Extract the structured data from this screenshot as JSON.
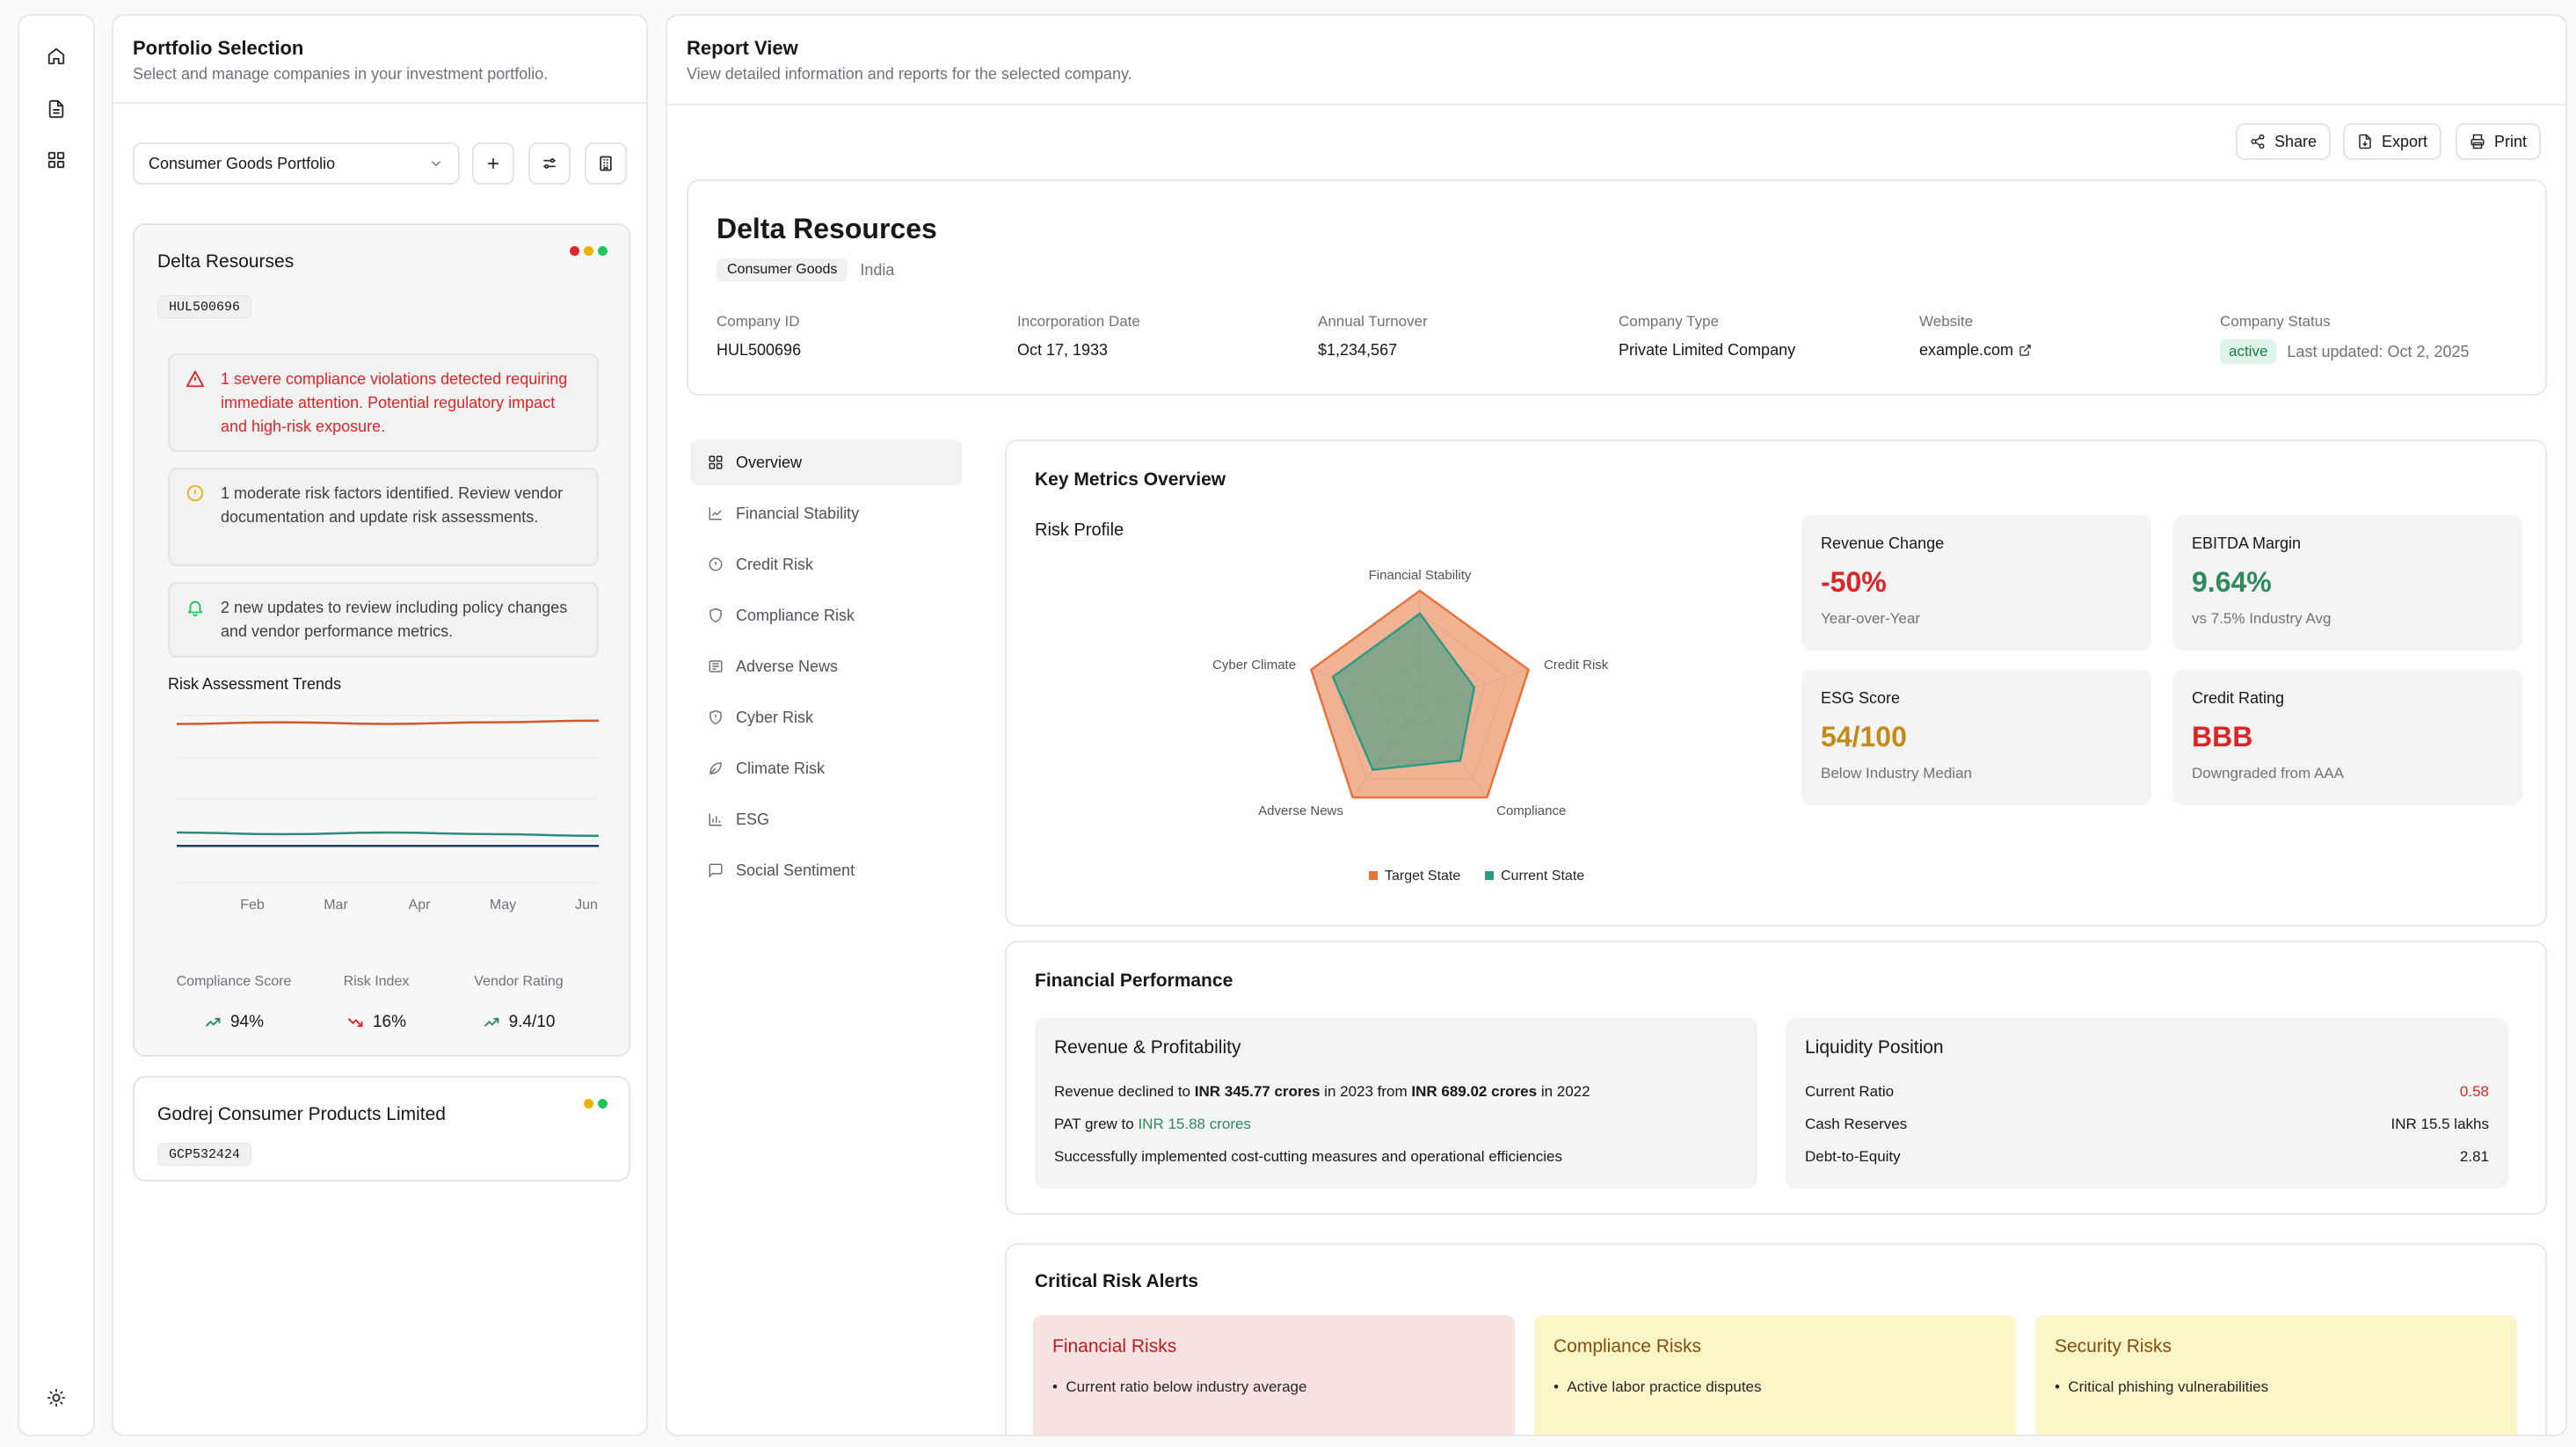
{
  "left_panel": {
    "title": "Portfolio Selection",
    "subtitle": "Select and manage companies in your investment portfolio.",
    "portfolio_select": "Consumer Goods Portfolio",
    "companies": [
      {
        "name": "Delta Resourses",
        "id": "HUL500696",
        "status_colors": [
          "#dc2626",
          "#eab308",
          "#22c55e"
        ],
        "alerts": [
          {
            "type": "severe",
            "text": "1 severe compliance violations detected requiring immediate attention. Potential regulatory impact and high-risk exposure."
          },
          {
            "type": "moderate",
            "text": "1 moderate risk factors identified. Review vendor documentation and update risk assessments."
          },
          {
            "type": "update",
            "text": "2 new updates to review including policy changes and vendor performance metrics."
          }
        ],
        "trends": {
          "title": "Risk Assessment Trends",
          "months": [
            "Feb",
            "Mar",
            "Apr",
            "May",
            "Jun"
          ],
          "stats": [
            {
              "label": "Compliance Score",
              "value": "94%",
              "trend": "up"
            },
            {
              "label": "Risk Index",
              "value": "16%",
              "trend": "down"
            },
            {
              "label": "Vendor Rating",
              "value": "9.4/10",
              "trend": "up"
            }
          ]
        }
      },
      {
        "name": "Godrej Consumer Products Limited",
        "id": "GCP532424",
        "status_colors": [
          "#eab308",
          "#22c55e"
        ]
      }
    ]
  },
  "right_panel": {
    "title": "Report View",
    "subtitle": "View detailed information and reports for the selected company.",
    "toolbar": {
      "share": "Share",
      "export": "Export",
      "print": "Print"
    },
    "company": {
      "name": "Delta Resources",
      "industry": "Consumer Goods",
      "country": "India",
      "fields": [
        {
          "label": "Company ID",
          "value": "HUL500696"
        },
        {
          "label": "Incorporation Date",
          "value": "Oct 17, 1933"
        },
        {
          "label": "Annual Turnover",
          "value": "$1,234,567"
        },
        {
          "label": "Company Type",
          "value": "Private Limited Company"
        },
        {
          "label": "Website",
          "value": "example.com"
        },
        {
          "label": "Company Status",
          "value": "active"
        }
      ],
      "last_updated": "Last updated: Oct 2, 2025"
    },
    "nav": [
      {
        "label": "Overview",
        "icon": "grid-icon",
        "active": true
      },
      {
        "label": "Financial Stability",
        "icon": "line-chart-icon"
      },
      {
        "label": "Credit Risk",
        "icon": "alert-circle-icon"
      },
      {
        "label": "Compliance Risk",
        "icon": "shield-icon"
      },
      {
        "label": "Adverse News",
        "icon": "newspaper-icon"
      },
      {
        "label": "Cyber Risk",
        "icon": "shield-alert-icon"
      },
      {
        "label": "Climate Risk",
        "icon": "leaf-icon"
      },
      {
        "label": "ESG",
        "icon": "bar-chart-icon"
      },
      {
        "label": "Social Sentiment",
        "icon": "message-icon"
      }
    ],
    "key_metrics": {
      "title": "Key Metrics Overview",
      "radar_title": "Risk Profile",
      "metrics": [
        {
          "title": "Revenue Change",
          "value": "-50%",
          "sub": "Year-over-Year",
          "color": "#dc2626"
        },
        {
          "title": "EBITDA Margin",
          "value": "9.64%",
          "sub": "vs 7.5% Industry Avg",
          "color": "#2f8a5c"
        },
        {
          "title": "ESG Score",
          "value": "54/100",
          "sub": "Below Industry Median",
          "color": "#c48a1a"
        },
        {
          "title": "Credit Rating",
          "value": "BBB",
          "sub": "Downgraded from AAA",
          "color": "#dc2626"
        }
      ]
    },
    "financial": {
      "title": "Financial Performance",
      "revenue": {
        "title": "Revenue & Profitability",
        "line1": {
          "a": "Revenue declined to ",
          "b": "INR 345.77 crores",
          "c": " in 2023 from ",
          "d": "INR 689.02 crores",
          "e": " in 2022"
        },
        "line2": {
          "a": "PAT grew to ",
          "b": "INR 15.88 crores"
        },
        "line3": "Successfully implemented cost-cutting measures and operational efficiencies"
      },
      "liquidity": {
        "title": "Liquidity Position",
        "rows": [
          {
            "label": "Current Ratio",
            "value": "0.58"
          },
          {
            "label": "Cash Reserves",
            "value": "INR 15.5 lakhs"
          },
          {
            "label": "Debt-to-Equity",
            "value": "2.81"
          }
        ]
      }
    },
    "critical": {
      "title": "Critical Risk Alerts",
      "columns": [
        {
          "title": "Financial Risks",
          "item": "Current ratio below industry average"
        },
        {
          "title": "Compliance Risks",
          "item": "Active labor practice disputes"
        },
        {
          "title": "Security Risks",
          "item": "Critical phishing vulnerabilities"
        }
      ]
    }
  },
  "chart_data": [
    {
      "type": "radar",
      "title": "Risk Profile",
      "axes": [
        "Financial Stability",
        "Credit Risk",
        "Compliance",
        "Adverse News",
        "Cyber Climate"
      ],
      "series": [
        {
          "name": "Target State",
          "values": [
            5,
            5,
            5,
            5,
            5
          ],
          "color": "#e8723c"
        },
        {
          "name": "Current State",
          "values": [
            4,
            2.5,
            3,
            3.5,
            4
          ],
          "color": "#2f9a84"
        }
      ],
      "range": [
        0,
        5
      ]
    },
    {
      "type": "line",
      "title": "Risk Assessment Trends",
      "categories": [
        "Feb",
        "Mar",
        "Apr",
        "May",
        "Jun"
      ],
      "series": [
        {
          "values": [
            95,
            96,
            95,
            96,
            97
          ],
          "color": "#d9582b"
        },
        {
          "values": [
            30,
            29,
            30,
            29,
            28
          ],
          "color": "#2f8a7a"
        },
        {
          "values": [
            22,
            22,
            22,
            22,
            22
          ],
          "color": "#1f3f5a"
        }
      ]
    }
  ]
}
